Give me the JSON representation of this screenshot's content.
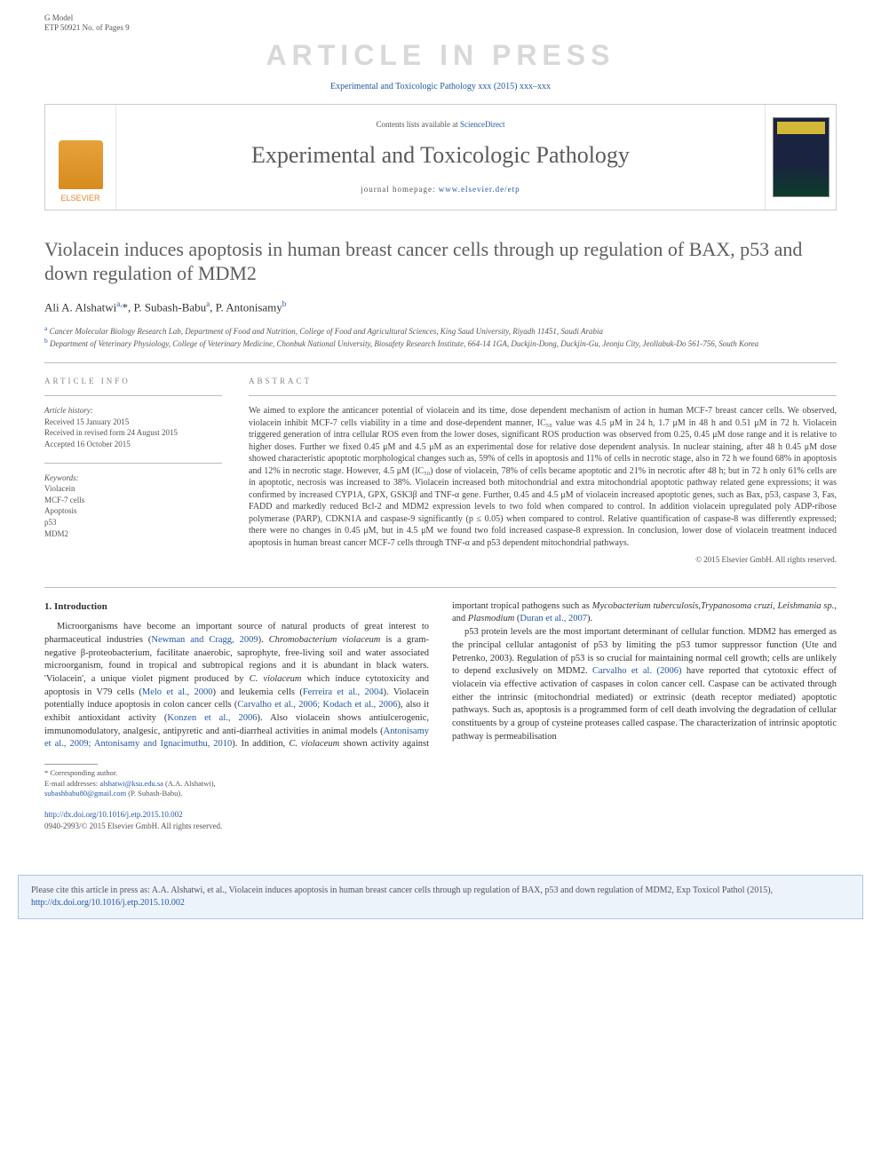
{
  "gmodel": {
    "line1": "G Model",
    "line2": "ETP 50921 No. of Pages 9"
  },
  "watermark": "ARTICLE IN PRESS",
  "journal_ref": "Experimental and Toxicologic Pathology xxx (2015) xxx–xxx",
  "header": {
    "contents_prefix": "Contents lists available at ",
    "contents_link": "ScienceDirect",
    "journal_name": "Experimental and Toxicologic Pathology",
    "homepage_prefix": "journal homepage: ",
    "homepage_url": "www.elsevier.de/etp",
    "publisher": "ELSEVIER"
  },
  "title": "Violacein induces apoptosis in human breast cancer cells through up regulation of BAX, p53 and down regulation of MDM2",
  "authors_html": "Ali A. Alshatwi<sup>a,</sup>*, P. Subash-Babu<sup>a</sup>, P. Antonisamy<sup>b</sup>",
  "affiliations": {
    "a": "Cancer Molecular Biology Research Lab, Department of Food and Nutrition, College of Food and Agricultural Sciences, King Saud University, Riyadh 11451, Saudi Arabia",
    "b": "Department of Veterinary Physiology, College of Veterinary Medicine, Chonbuk National University, Biosafety Research Institute, 664-14 1GA, Duckjin-Dong, Duckjin-Gu, Jeonju City, Jeollabuk-Do 561-756, South Korea"
  },
  "article_info": {
    "label": "ARTICLE INFO",
    "history_label": "Article history:",
    "received": "Received 15 January 2015",
    "revised": "Received in revised form 24 August 2015",
    "accepted": "Accepted 16 October 2015",
    "keywords_label": "Keywords:",
    "keywords": [
      "Violacein",
      "MCF-7 cells",
      "Apoptosis",
      "p53",
      "MDM2"
    ]
  },
  "abstract": {
    "label": "ABSTRACT",
    "text": "We aimed to explore the anticancer potential of violacein and its time, dose dependent mechanism of action in human MCF-7 breast cancer cells. We observed, violacein inhibit MCF-7 cells viability in a time and dose-dependent manner, IC₅₀ value was 4.5 μM in 24 h, 1.7 μM in 48 h and 0.51 μM in 72 h. Violacein triggered generation of intra cellular ROS even from the lower doses, significant ROS production was observed from 0.25, 0.45 μM dose range and it is relative to higher doses. Further we fixed 0.45 μM and 4.5 μM as an experimental dose for relative dose dependent analysis. In nuclear staining, after 48 h 0.45 μM dose showed characteristic apoptotic morphological changes such as, 59% of cells in apoptosis and 11% of cells in necrotic stage, also in 72 h we found 68% in apoptosis and 12% in necrotic stage. However, 4.5 μM (IC₅₀) dose of violacein, 78% of cells became apoptotic and 21% in necrotic after 48 h; but in 72 h only 61% cells are in apoptotic, necrosis was increased to 38%. Violacein increased both mitochondrial and extra mitochondrial apoptotic pathway related gene expressions; it was confirmed by increased CYP1A, GPX, GSK3β and TNF-α gene. Further, 0.45 and 4.5 μM of violacein increased apoptotic genes, such as Bax, p53, caspase 3, Fas, FADD and markedly reduced Bcl-2 and MDM2 expression levels to two fold when compared to control. In addition violacein upregulated poly ADP-ribose polymerase (PARP), CDKN1A and caspase-9 significantly (p ≤ 0.05) when compared to control. Relative quantification of caspase-8 was differently expressed; there were no changes in 0.45 μM, but in 4.5 μM we found two fold increased caspase-8 expression. In conclusion, lower dose of violacein treatment induced apoptosis in human breast cancer MCF-7 cells through TNF-α and p53 dependent mitochondrial pathways.",
    "copyright": "© 2015 Elsevier GmbH. All rights reserved."
  },
  "intro": {
    "heading": "1. Introduction",
    "p1a": "Microorganisms have become an important source of natural products of great interest to pharmaceutical industries (",
    "p1_ref1": "Newman and Cragg, 2009",
    "p1b": "). ",
    "p1_ital1": "Chromobacterium violaceum",
    "p1c": " is a gram-negative β-proteobacterium, facilitate anaerobic, saprophyte, free-living soil and water associated microorganism, found in tropical and subtropical regions and it is abundant in black waters. 'Violacein', a unique violet pigment produced by ",
    "p1_ital2": "C. violaceum",
    "p1d": " which induce cytotoxicity and apoptosis in V79 cells (",
    "p1_ref2": "Melo et al., 2000",
    "p1e": ") and leukemia cells (",
    "p1_ref3": "Ferreira et al., 2004",
    "p1f": "). Violacein potentially induce apoptosis in colon cancer cells (",
    "p1_ref4": "Carvalho et al., 2006; Kodach et al., 2006",
    "p1g": "), also it exhibit antioxidant activity (",
    "p1_ref5": "Konzen et al., 2006",
    "p1h": "). Also violacein shows antiulcerogenic, immunomodulatory, analgesic, antipyretic and anti-diarrheal activities in animal models (",
    "p1_ref6": "Antonisamy et al., 2009; Antonisamy and Ignacimuthu, 2010",
    "p1i": "). In addition, ",
    "p1_ital3": "C. violaceum",
    "p1j": " shown activity against important tropical pathogens such as ",
    "p1_ital4": "Mycobacterium tuberculosis",
    "p1k": ",",
    "p1_ital5": "Trypanosoma cruzi",
    "p1l": ", ",
    "p1_ital6": "Leishmania sp.",
    "p1m": ", and ",
    "p1_ital7": "Plasmodium",
    "p1n": " (",
    "p1_ref7": "Duran et al., 2007",
    "p1o": ").",
    "p2a": "p53 protein levels are the most important determinant of cellular function. MDM2 has emerged as the principal cellular antagonist of p53 by limiting the p53 tumor suppressor function (Ute and Petrenko, 2003). Regulation of p53 is so crucial for maintaining normal cell growth; cells are unlikely to depend exclusively on MDM2. ",
    "p2_ref1": "Carvalho et al. (2006)",
    "p2b": " have reported that cytotoxic effect of violacein via effective activation of caspases in colon cancer cell. Caspase can be activated through either the intrinsic (mitochondrial mediated) or extrinsic (death receptor mediated) apoptotic pathways. Such as, apoptosis is a programmed form of cell death involving the degradation of cellular constituents by a group of cysteine proteases called caspase. The characterization of intrinsic apoptotic pathway is permeabilisation"
  },
  "footnotes": {
    "corr": "* Corresponding author.",
    "email_label": "E-mail addresses: ",
    "email1": "alshatwi@ksu.edu.sa",
    "email1_who": " (A.A. Alshatwi), ",
    "email2": "subashbabu80@gmail.com",
    "email2_who": " (P. Subash-Babu)."
  },
  "doi": {
    "url": "http://dx.doi.org/10.1016/j.etp.2015.10.002",
    "issn": "0940-2993/© 2015 Elsevier GmbH. All rights reserved."
  },
  "citebox": {
    "prefix": "Please cite this article in press as: A.A. Alshatwi, et al., Violacein induces apoptosis in human breast cancer cells through up regulation of BAX, p53 and down regulation of MDM2, Exp Toxicol Pathol (2015), ",
    "url": "http://dx.doi.org/10.1016/j.etp.2015.10.002"
  }
}
